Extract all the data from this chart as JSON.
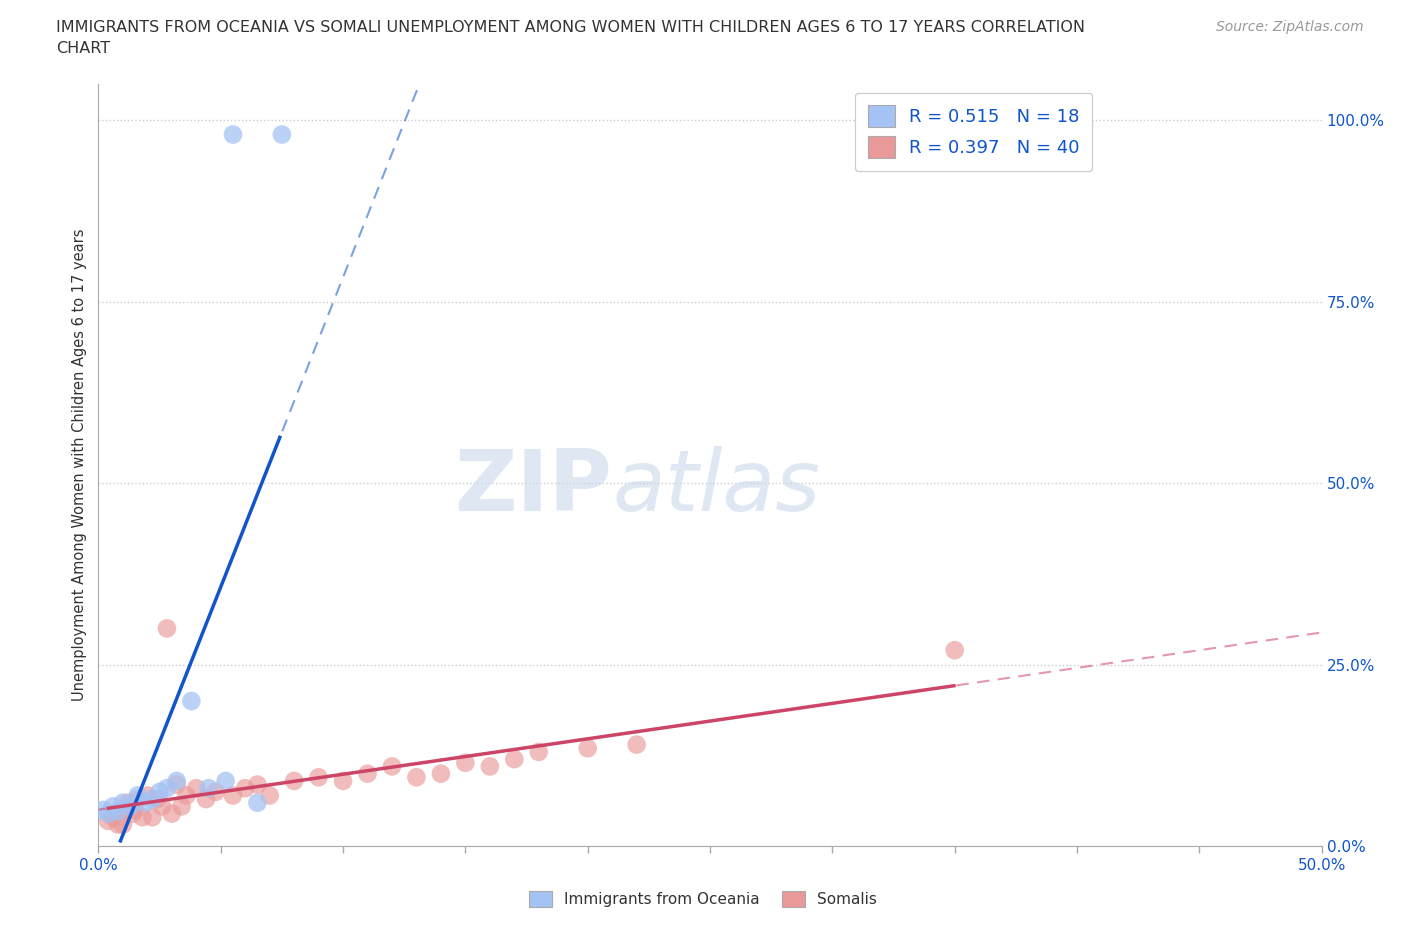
{
  "title_line1": "IMMIGRANTS FROM OCEANIA VS SOMALI UNEMPLOYMENT AMONG WOMEN WITH CHILDREN AGES 6 TO 17 YEARS CORRELATION",
  "title_line2": "CHART",
  "source": "Source: ZipAtlas.com",
  "ylabel": "Unemployment Among Women with Children Ages 6 to 17 years",
  "xlim": [
    0.0,
    0.5
  ],
  "ylim": [
    0.0,
    1.05
  ],
  "yticks": [
    0.0,
    0.25,
    0.5,
    0.75,
    1.0
  ],
  "ytick_labels": [
    "0.0%",
    "25.0%",
    "50.0%",
    "75.0%",
    "100.0%"
  ],
  "xticks": [
    0.0,
    0.05,
    0.1,
    0.15,
    0.2,
    0.25,
    0.3,
    0.35,
    0.4,
    0.45,
    0.5
  ],
  "blue_color": "#a4c2f4",
  "pink_color": "#ea9999",
  "blue_line_color": "#1155cc",
  "pink_line_color": "#cc4466",
  "R_blue": 0.515,
  "N_blue": 18,
  "R_pink": 0.397,
  "N_pink": 40,
  "blue_scatter_x": [
    0.002,
    0.004,
    0.006,
    0.008,
    0.01,
    0.013,
    0.016,
    0.019,
    0.022,
    0.025,
    0.028,
    0.032,
    0.038,
    0.045,
    0.052,
    0.065,
    0.055,
    0.075
  ],
  "blue_scatter_y": [
    0.05,
    0.045,
    0.055,
    0.048,
    0.06,
    0.055,
    0.07,
    0.06,
    0.065,
    0.075,
    0.08,
    0.09,
    0.2,
    0.08,
    0.09,
    0.06,
    0.98,
    0.98
  ],
  "pink_scatter_x": [
    0.004,
    0.006,
    0.008,
    0.01,
    0.012,
    0.014,
    0.016,
    0.018,
    0.02,
    0.022,
    0.024,
    0.026,
    0.028,
    0.03,
    0.032,
    0.034,
    0.036,
    0.04,
    0.044,
    0.048,
    0.055,
    0.06,
    0.065,
    0.07,
    0.08,
    0.09,
    0.1,
    0.11,
    0.12,
    0.13,
    0.14,
    0.15,
    0.16,
    0.17,
    0.18,
    0.2,
    0.22,
    0.35,
    0.01,
    0.015
  ],
  "pink_scatter_y": [
    0.035,
    0.04,
    0.03,
    0.05,
    0.06,
    0.045,
    0.065,
    0.04,
    0.07,
    0.04,
    0.065,
    0.055,
    0.3,
    0.045,
    0.085,
    0.055,
    0.07,
    0.08,
    0.065,
    0.075,
    0.07,
    0.08,
    0.085,
    0.07,
    0.09,
    0.095,
    0.09,
    0.1,
    0.11,
    0.095,
    0.1,
    0.115,
    0.11,
    0.12,
    0.13,
    0.135,
    0.14,
    0.27,
    0.03,
    0.05
  ],
  "background_color": "#ffffff",
  "grid_color": "#cccccc",
  "tick_color": "#1155cc",
  "label_color": "#333333",
  "source_color": "#999999"
}
